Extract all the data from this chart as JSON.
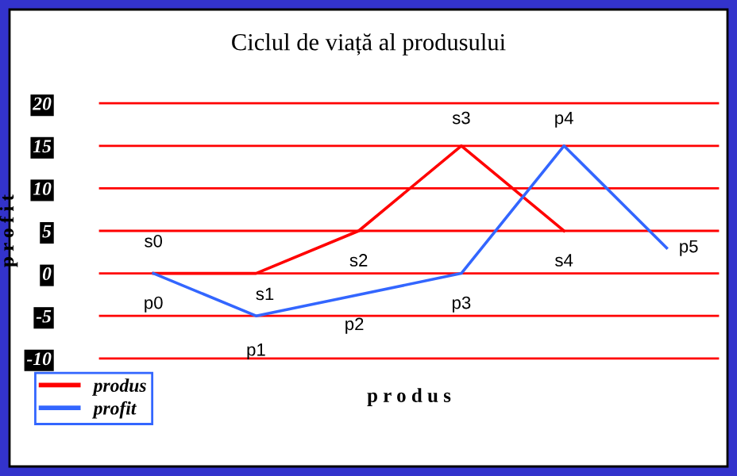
{
  "chart_data": {
    "type": "line",
    "title": "Ciclul de viață al produsului",
    "xlabel": "p r o d u s",
    "ylabel": "p r o f i t",
    "categories": [
      null,
      null,
      null,
      null,
      null,
      null
    ],
    "series": [
      {
        "name": "produs",
        "color": "#ff0000",
        "values": [
          0,
          0,
          5,
          15,
          5,
          null
        ],
        "value_labels": [
          "s0",
          "s1",
          "s2",
          "s3",
          "s4",
          null
        ]
      },
      {
        "name": "profit",
        "color": "#3366ff",
        "values": [
          0,
          -5,
          -2.5,
          0,
          15,
          3
        ],
        "value_labels": [
          "p0",
          "p1",
          "p2",
          "p3",
          "p4",
          "p5"
        ]
      }
    ],
    "ylim": [
      -10,
      20
    ],
    "yticks": [
      -10,
      -5,
      0,
      5,
      10,
      15,
      20
    ],
    "grid": "y",
    "legend": "bottom left",
    "marker": "none",
    "line_style": "solid"
  }
}
